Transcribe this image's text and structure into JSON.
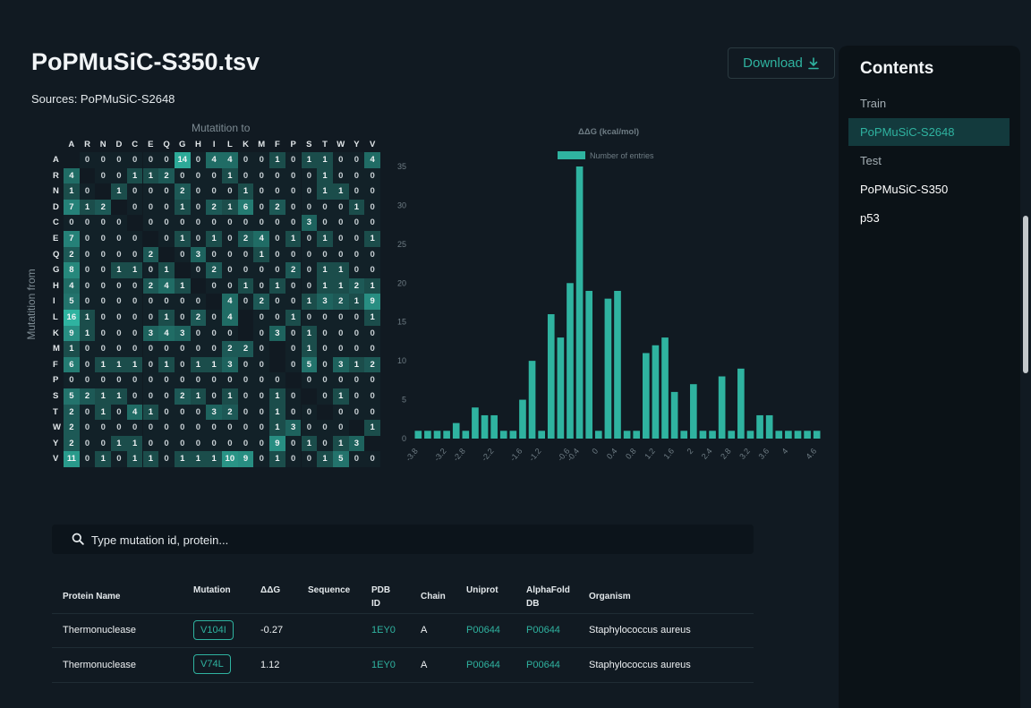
{
  "page": {
    "title": "PoPMuSiC-S350.tsv",
    "sources": "Sources: PoPMuSiC-S2648",
    "download_label": "Download",
    "accent": "#2fb3a0"
  },
  "heatmap": {
    "x_title": "Mutatition to",
    "y_title": "Mutatition from",
    "amino_acids": [
      "A",
      "R",
      "N",
      "D",
      "C",
      "E",
      "Q",
      "G",
      "H",
      "I",
      "L",
      "K",
      "M",
      "F",
      "P",
      "S",
      "T",
      "W",
      "Y",
      "V"
    ],
    "cells": [
      [
        "",
        "",
        0,
        0,
        0,
        0,
        0,
        0,
        14,
        0,
        4,
        4,
        0,
        0,
        1,
        0,
        1,
        1,
        0,
        0,
        4
      ],
      [
        "",
        4,
        "",
        0,
        0,
        1,
        1,
        2,
        0,
        0,
        0,
        1,
        0,
        0,
        0,
        0,
        0,
        1,
        0,
        0,
        0
      ],
      [
        "",
        1,
        0,
        "",
        1,
        0,
        0,
        0,
        2,
        0,
        0,
        0,
        1,
        0,
        0,
        0,
        0,
        1,
        1,
        0,
        0
      ],
      [
        "",
        7,
        1,
        2,
        "",
        0,
        0,
        0,
        1,
        0,
        2,
        1,
        6,
        0,
        2,
        0,
        0,
        0,
        0,
        1,
        0
      ],
      [
        "",
        0,
        0,
        0,
        0,
        "",
        0,
        0,
        0,
        0,
        0,
        0,
        0,
        0,
        0,
        0,
        3,
        0,
        0,
        0,
        0
      ],
      [
        "",
        7,
        0,
        0,
        0,
        0,
        "",
        0,
        1,
        0,
        1,
        0,
        2,
        4,
        0,
        1,
        0,
        1,
        0,
        0,
        1,
        1
      ],
      [
        "",
        2,
        0,
        0,
        0,
        0,
        2,
        "",
        0,
        3,
        0,
        0,
        0,
        1,
        0,
        0,
        0,
        0,
        0,
        0,
        0
      ],
      [
        "",
        8,
        0,
        0,
        1,
        1,
        0,
        1,
        "",
        0,
        2,
        0,
        0,
        0,
        0,
        2,
        0,
        1,
        1,
        0,
        0,
        3
      ],
      [
        "",
        4,
        0,
        0,
        0,
        0,
        2,
        4,
        1,
        "",
        0,
        0,
        1,
        0,
        1,
        0,
        0,
        1,
        1,
        2,
        1
      ],
      [
        "",
        5,
        0,
        0,
        0,
        0,
        0,
        0,
        0,
        0,
        "",
        4,
        0,
        2,
        0,
        0,
        1,
        3,
        2,
        1,
        9
      ],
      [
        "",
        16,
        1,
        0,
        0,
        0,
        0,
        1,
        0,
        2,
        0,
        4,
        "",
        0,
        0,
        1,
        0,
        0,
        0,
        0,
        1,
        6
      ],
      [
        "",
        9,
        1,
        0,
        0,
        0,
        3,
        4,
        3,
        0,
        0,
        0,
        "",
        0,
        3,
        0,
        1,
        0,
        0,
        0,
        0
      ],
      [
        "",
        1,
        0,
        0,
        0,
        0,
        0,
        0,
        0,
        0,
        0,
        2,
        2,
        0,
        "",
        0,
        1,
        0,
        0,
        0,
        0,
        0
      ],
      [
        "",
        6,
        0,
        1,
        1,
        1,
        0,
        1,
        0,
        1,
        1,
        3,
        0,
        0,
        "",
        0,
        5,
        0,
        3,
        1,
        2
      ],
      [
        "",
        0,
        0,
        0,
        0,
        0,
        0,
        0,
        0,
        0,
        0,
        0,
        0,
        0,
        0,
        "",
        0,
        0,
        0,
        0,
        0
      ],
      [
        "",
        5,
        2,
        1,
        1,
        0,
        0,
        0,
        2,
        1,
        0,
        1,
        0,
        0,
        1,
        0,
        "",
        0,
        1,
        0,
        0
      ],
      [
        "",
        2,
        0,
        1,
        0,
        4,
        1,
        0,
        0,
        0,
        3,
        2,
        0,
        0,
        1,
        0,
        0,
        "",
        0,
        0,
        0,
        3
      ],
      [
        "",
        2,
        0,
        0,
        0,
        0,
        0,
        0,
        0,
        0,
        0,
        0,
        0,
        0,
        1,
        3,
        0,
        0,
        0,
        "",
        1,
        0
      ],
      [
        "",
        2,
        0,
        0,
        1,
        1,
        0,
        0,
        0,
        0,
        0,
        0,
        0,
        0,
        9,
        0,
        1,
        0,
        1,
        3,
        "",
        0
      ],
      [
        "",
        11,
        0,
        1,
        0,
        1,
        1,
        0,
        1,
        1,
        1,
        10,
        9,
        0,
        1,
        0,
        0,
        1,
        5,
        0,
        0,
        ""
      ]
    ],
    "max_value": 16,
    "cell_color": "#2fb3a0"
  },
  "chart_data": {
    "type": "bar",
    "title": "ΔΔG (kcal/mol)",
    "legend": "Number of entries",
    "legend_position": "top-center",
    "x_tick_labels": [
      "-3.8",
      "-3.2",
      "-2.8",
      "-2.2",
      "-1.6",
      "-1.2",
      "-0.6",
      "-0.4",
      "0",
      "0.4",
      "0.8",
      "1.2",
      "1.6",
      "2",
      "2.4",
      "2.8",
      "3.2",
      "3.6",
      "4",
      "4.6"
    ],
    "x": [
      -3.8,
      -3.6,
      -3.4,
      -3.2,
      -3.0,
      -2.8,
      -2.6,
      -2.4,
      -2.2,
      -2.0,
      -1.8,
      -1.6,
      -1.4,
      -1.2,
      -1.0,
      -0.8,
      -0.6,
      -0.4,
      -0.2,
      0.0,
      0.2,
      0.4,
      0.6,
      0.8,
      1.0,
      1.2,
      1.4,
      1.6,
      1.8,
      2.0,
      2.2,
      2.4,
      2.6,
      2.8,
      3.0,
      3.2,
      3.4,
      3.6,
      3.8,
      4.0,
      4.2,
      4.4,
      4.6
    ],
    "values": [
      1,
      1,
      1,
      1,
      2,
      1,
      4,
      3,
      3,
      1,
      1,
      5,
      10,
      1,
      16,
      13,
      20,
      35,
      19,
      1,
      18,
      19,
      1,
      1,
      11,
      12,
      13,
      6,
      1,
      7,
      1,
      1,
      8,
      1,
      9,
      1,
      3,
      3,
      1,
      1,
      1,
      1,
      1
    ],
    "ylim": [
      0,
      35
    ],
    "y_ticks": [
      0,
      5,
      10,
      15,
      20,
      25,
      30,
      35
    ],
    "bar_color": "#2fb3a0"
  },
  "search": {
    "placeholder": "Type mutation id, protein..."
  },
  "table": {
    "headers": [
      "Protein Name",
      "Mutation",
      "ΔΔG",
      "Sequence",
      "PDB ID",
      "Chain",
      "Uniprot",
      "AlphaFold DB",
      "Organism"
    ],
    "rows": [
      {
        "protein": "Thermonuclease",
        "mutation": "V104I",
        "ddg": "-0.27",
        "sequence": "",
        "pdb": "1EY0",
        "chain": "A",
        "uniprot": "P00644",
        "alphafold": "P00644",
        "organism": "Staphylococcus aureus"
      },
      {
        "protein": "Thermonuclease",
        "mutation": "V74L",
        "ddg": "1.12",
        "sequence": "",
        "pdb": "1EY0",
        "chain": "A",
        "uniprot": "P00644",
        "alphafold": "P00644",
        "organism": "Staphylococcus aureus"
      }
    ]
  },
  "sidebar": {
    "title": "Contents",
    "items": [
      {
        "label": "Train",
        "state": "muted"
      },
      {
        "label": "PoPMuSiC-S2648",
        "state": "active"
      },
      {
        "label": "Test",
        "state": "muted"
      },
      {
        "label": "PoPMuSiC-S350",
        "state": "normal"
      },
      {
        "label": "p53",
        "state": "normal"
      }
    ]
  }
}
